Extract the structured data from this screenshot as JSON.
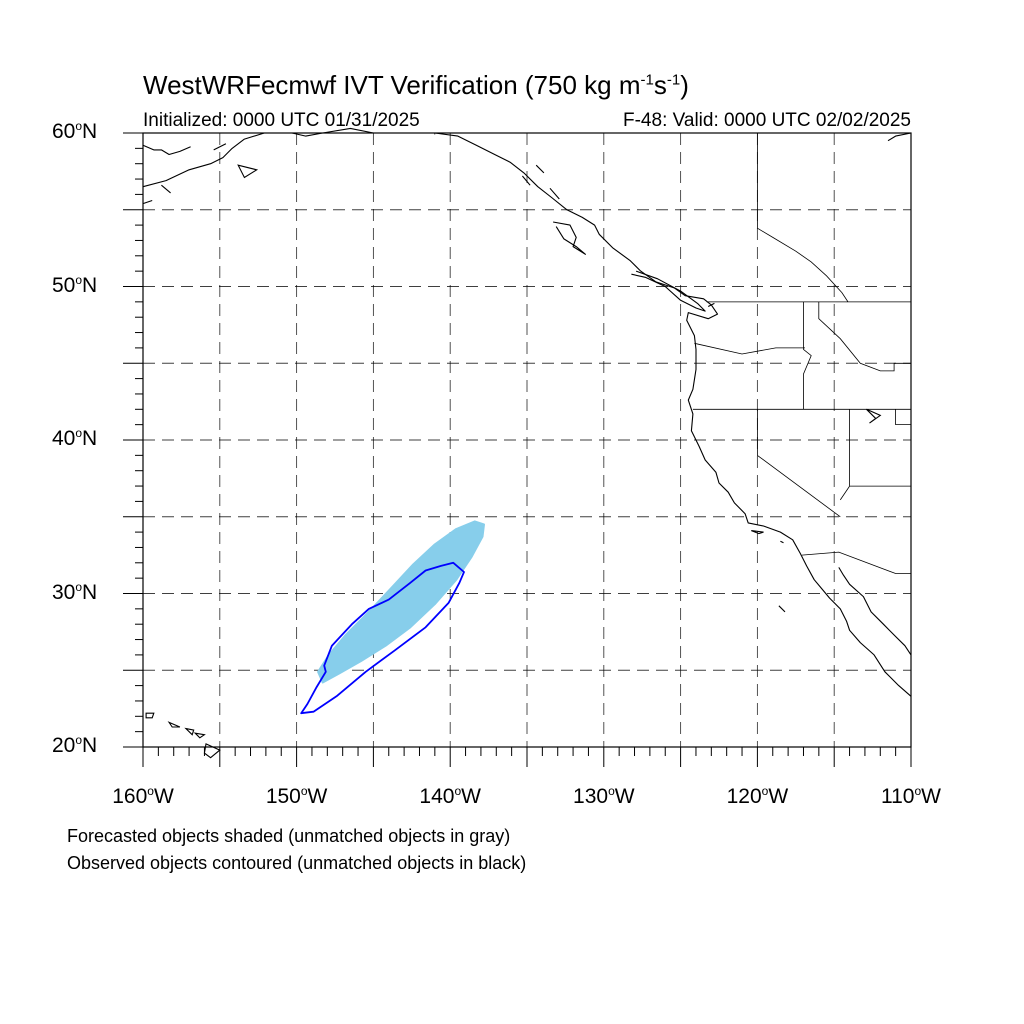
{
  "title": {
    "prefix": "WestWRFecmwf IVT Verification (750 kg m",
    "sup1": "-1",
    "mid": "s",
    "sup2": "-1",
    "suffix": ")"
  },
  "initialized": "Initialized: 0000 UTC 01/31/2025",
  "valid": "F-48: Valid: 0000 UTC 02/02/2025",
  "lat_labels": [
    {
      "value": 60,
      "num": "60",
      "hemi": "N"
    },
    {
      "value": 50,
      "num": "50",
      "hemi": "N"
    },
    {
      "value": 40,
      "num": "40",
      "hemi": "N"
    },
    {
      "value": 30,
      "num": "30",
      "hemi": "N"
    },
    {
      "value": 20,
      "num": "20",
      "hemi": "N"
    }
  ],
  "lon_labels": [
    {
      "value": -160,
      "num": "160",
      "hemi": "W"
    },
    {
      "value": -150,
      "num": "150",
      "hemi": "W"
    },
    {
      "value": -140,
      "num": "140",
      "hemi": "W"
    },
    {
      "value": -130,
      "num": "130",
      "hemi": "W"
    },
    {
      "value": -120,
      "num": "120",
      "hemi": "W"
    },
    {
      "value": -110,
      "num": "110",
      "hemi": "W"
    }
  ],
  "legend": {
    "line1": "Forecasted objects shaded (unmatched objects in gray)",
    "line2": "Observed objects contoured (unmatched objects in black)"
  },
  "map_extent": {
    "lon_min": -160,
    "lon_max": -110,
    "lat_min": 20,
    "lat_max": 60,
    "grid_step_deg": 5
  },
  "colors": {
    "forecast_fill": "#87ceeb",
    "observed_contour": "#0000ff",
    "grid": "#000000"
  },
  "forecast_object": [
    [
      -148.3,
      24.2
    ],
    [
      -147.2,
      24.8
    ],
    [
      -145.8,
      25.6
    ],
    [
      -144.2,
      26.6
    ],
    [
      -142.6,
      27.8
    ],
    [
      -141.0,
      29.3
    ],
    [
      -139.6,
      30.9
    ],
    [
      -138.6,
      32.4
    ],
    [
      -137.9,
      33.7
    ],
    [
      -137.8,
      34.5
    ],
    [
      -138.4,
      34.7
    ],
    [
      -139.6,
      34.2
    ],
    [
      -141.0,
      33.2
    ],
    [
      -142.4,
      31.9
    ],
    [
      -143.8,
      30.4
    ],
    [
      -145.3,
      28.8
    ],
    [
      -146.8,
      27.3
    ],
    [
      -147.9,
      26.0
    ],
    [
      -148.6,
      24.9
    ]
  ],
  "observed_object": [
    [
      -149.7,
      22.2
    ],
    [
      -148.9,
      22.3
    ],
    [
      -147.4,
      23.3
    ],
    [
      -145.5,
      24.9
    ],
    [
      -143.6,
      26.3
    ],
    [
      -141.6,
      27.8
    ],
    [
      -140.1,
      29.4
    ],
    [
      -139.4,
      30.7
    ],
    [
      -139.1,
      31.4
    ],
    [
      -139.8,
      32.0
    ],
    [
      -140.6,
      31.8
    ],
    [
      -141.6,
      31.5
    ],
    [
      -142.6,
      30.7
    ],
    [
      -144.0,
      29.6
    ],
    [
      -145.3,
      29.0
    ],
    [
      -146.4,
      28.0
    ],
    [
      -147.7,
      26.6
    ],
    [
      -148.2,
      25.3
    ],
    [
      -148.1,
      24.9
    ],
    [
      -148.7,
      23.9
    ],
    [
      -149.3,
      22.8
    ]
  ],
  "coastlines": [
    [
      [
        -160,
        56.5
      ],
      [
        -158.5,
        56.9
      ],
      [
        -157.0,
        57.6
      ],
      [
        -155.6,
        58.0
      ],
      [
        -154.8,
        58.4
      ],
      [
        -154.2,
        59.0
      ],
      [
        -153.4,
        59.6
      ],
      [
        -152.1,
        60.0
      ]
    ],
    [
      [
        -160,
        59.2
      ],
      [
        -159.3,
        58.9
      ],
      [
        -158.8,
        58.9
      ],
      [
        -158.3,
        58.6
      ],
      [
        -157.6,
        58.8
      ],
      [
        -156.9,
        59.1
      ]
    ],
    [
      [
        -150.3,
        60.0
      ],
      [
        -149.4,
        59.8
      ],
      [
        -148.3,
        60.0
      ],
      [
        -146.5,
        60.3
      ],
      [
        -145.0,
        60.0
      ],
      [
        -143.0,
        60.0
      ],
      [
        -141.0,
        60.0
      ],
      [
        -139.5,
        59.8
      ],
      [
        -138.3,
        59.2
      ],
      [
        -137.1,
        58.6
      ],
      [
        -136.1,
        58.1
      ],
      [
        -135.2,
        57.4
      ],
      [
        -134.3,
        56.5
      ],
      [
        -133.4,
        55.8
      ],
      [
        -132.4,
        55.0
      ],
      [
        -131.4,
        54.5
      ],
      [
        -130.6,
        54.0
      ],
      [
        -130.3,
        53.4
      ],
      [
        -129.4,
        52.5
      ],
      [
        -128.3,
        51.7
      ],
      [
        -127.6,
        51.0
      ],
      [
        -126.6,
        50.3
      ],
      [
        -125.4,
        49.9
      ],
      [
        -124.7,
        49.4
      ],
      [
        -123.5,
        49.2
      ],
      [
        -123.0,
        48.8
      ],
      [
        -122.6,
        48.2
      ],
      [
        -123.2,
        47.9
      ],
      [
        -124.5,
        48.3
      ],
      [
        -124.6,
        47.8
      ],
      [
        -124.1,
        46.8
      ],
      [
        -124.0,
        45.9
      ],
      [
        -124.0,
        44.6
      ],
      [
        -124.2,
        43.3
      ],
      [
        -124.5,
        42.6
      ],
      [
        -124.2,
        41.7
      ],
      [
        -124.3,
        40.6
      ],
      [
        -123.8,
        39.6
      ],
      [
        -123.4,
        38.7
      ],
      [
        -122.7,
        37.9
      ],
      [
        -122.5,
        37.2
      ],
      [
        -121.9,
        36.6
      ],
      [
        -121.5,
        35.9
      ],
      [
        -120.8,
        35.2
      ],
      [
        -120.6,
        34.6
      ],
      [
        -119.6,
        34.4
      ],
      [
        -118.5,
        34.0
      ],
      [
        -117.7,
        33.5
      ],
      [
        -117.2,
        32.6
      ],
      [
        -116.8,
        31.8
      ],
      [
        -116.3,
        30.9
      ],
      [
        -115.8,
        30.3
      ],
      [
        -115.3,
        29.7
      ],
      [
        -114.6,
        29.0
      ],
      [
        -114.2,
        28.2
      ],
      [
        -114.0,
        27.6
      ],
      [
        -113.3,
        26.8
      ],
      [
        -112.4,
        26.0
      ],
      [
        -111.7,
        24.9
      ],
      [
        -110.8,
        24.0
      ],
      [
        -110.0,
        23.3
      ]
    ],
    [
      [
        -114.7,
        31.7
      ],
      [
        -114.4,
        31.2
      ],
      [
        -114.0,
        30.6
      ],
      [
        -113.1,
        29.8
      ],
      [
        -112.6,
        28.8
      ],
      [
        -111.8,
        28.0
      ],
      [
        -111.0,
        27.2
      ],
      [
        -110.4,
        26.6
      ],
      [
        -110.0,
        26.0
      ]
    ],
    [
      [
        -110,
        60.0
      ],
      [
        -111.0,
        59.8
      ],
      [
        -111.5,
        59.5
      ]
    ],
    [
      [
        -133.3,
        54.2
      ],
      [
        -132.2,
        54.0
      ],
      [
        -131.8,
        53.2
      ],
      [
        -132.0,
        52.6
      ],
      [
        -131.2,
        52.1
      ],
      [
        -131.8,
        52.6
      ],
      [
        -132.6,
        53.1
      ],
      [
        -133.1,
        53.9
      ]
    ],
    [
      [
        -128.2,
        50.8
      ],
      [
        -127.3,
        50.6
      ],
      [
        -126.0,
        50.0
      ],
      [
        -125.0,
        49.1
      ],
      [
        -124.0,
        48.6
      ],
      [
        -123.4,
        48.4
      ],
      [
        -123.9,
        48.9
      ],
      [
        -125.0,
        49.7
      ],
      [
        -126.5,
        50.5
      ],
      [
        -127.9,
        51.0
      ]
    ]
  ],
  "borders": [
    [
      [
        -141.0,
        60.0
      ],
      [
        -141.0,
        59.9
      ]
    ],
    [
      [
        -123.3,
        49.0
      ],
      [
        -110,
        49.0
      ]
    ],
    [
      [
        -124.2,
        42.0
      ],
      [
        -110,
        42.0
      ]
    ],
    [
      [
        -120.0,
        42.0
      ],
      [
        -120.0,
        39.0
      ],
      [
        -114.6,
        35.0
      ]
    ],
    [
      [
        -117.1,
        32.5
      ],
      [
        -114.7,
        32.7
      ],
      [
        -111.0,
        31.3
      ],
      [
        -110,
        31.3
      ]
    ],
    [
      [
        -114.0,
        42.0
      ],
      [
        -114.0,
        37.0
      ],
      [
        -114.6,
        36.1
      ]
    ],
    [
      [
        -111.0,
        42.0
      ],
      [
        -111.0,
        41.0
      ],
      [
        -110,
        41.0
      ]
    ],
    [
      [
        -114.0,
        37.0
      ],
      [
        -110,
        37.0
      ]
    ],
    [
      [
        -124.1,
        46.3
      ],
      [
        -121.0,
        45.6
      ],
      [
        -118.8,
        46.0
      ],
      [
        -116.9,
        46.0
      ]
    ],
    [
      [
        -117.0,
        49.0
      ],
      [
        -117.0,
        45.9
      ],
      [
        -116.5,
        45.5
      ],
      [
        -117.0,
        44.3
      ],
      [
        -117.0,
        42.0
      ]
    ],
    [
      [
        -116.0,
        49.0
      ],
      [
        -116.0,
        47.9
      ],
      [
        -114.6,
        46.6
      ],
      [
        -113.3,
        45.0
      ],
      [
        -112.0,
        44.5
      ],
      [
        -111.1,
        44.5
      ],
      [
        -111.1,
        45.0
      ],
      [
        -110,
        45.0
      ]
    ],
    [
      [
        -120.0,
        60.0
      ],
      [
        -120.0,
        53.8
      ],
      [
        -119.0,
        53.2
      ],
      [
        -117.5,
        52.3
      ],
      [
        -116.5,
        51.6
      ],
      [
        -115.5,
        50.7
      ],
      [
        -114.5,
        49.6
      ],
      [
        -114.1,
        49.0
      ]
    ]
  ],
  "islands": [
    [
      [
        -159.8,
        22.2
      ],
      [
        -159.3,
        22.2
      ],
      [
        -159.4,
        21.9
      ],
      [
        -159.8,
        21.9
      ]
    ],
    [
      [
        -158.3,
        21.6
      ],
      [
        -157.6,
        21.3
      ],
      [
        -158.1,
        21.3
      ]
    ],
    [
      [
        -157.2,
        21.2
      ],
      [
        -156.7,
        21.1
      ],
      [
        -156.8,
        20.8
      ]
    ],
    [
      [
        -156.6,
        20.9
      ],
      [
        -156.0,
        20.8
      ],
      [
        -156.3,
        20.6
      ]
    ],
    [
      [
        -155.9,
        20.2
      ],
      [
        -155.0,
        19.8
      ],
      [
        -155.6,
        19.3
      ],
      [
        -156.0,
        19.6
      ]
    ],
    [
      [
        -120.4,
        34.1
      ],
      [
        -119.6,
        34.0
      ],
      [
        -119.9,
        33.9
      ]
    ],
    [
      [
        -118.5,
        33.4
      ],
      [
        -118.3,
        33.3
      ]
    ],
    [
      [
        -118.6,
        29.2
      ],
      [
        -118.2,
        28.8
      ]
    ],
    [
      [
        -112.9,
        42.0
      ],
      [
        -112.3,
        41.4
      ],
      [
        -112.7,
        41.1
      ],
      [
        -112.0,
        41.6
      ]
    ],
    [
      [
        -160,
        55.4
      ],
      [
        -159.4,
        55.6
      ]
    ],
    [
      [
        -158.8,
        56.6
      ],
      [
        -158.2,
        56.1
      ]
    ],
    [
      [
        -153.8,
        57.9
      ],
      [
        -152.6,
        57.6
      ],
      [
        -153.4,
        57.1
      ]
    ],
    [
      [
        -155.4,
        58.9
      ],
      [
        -154.6,
        59.3
      ]
    ],
    [
      [
        -134.4,
        57.9
      ],
      [
        -133.9,
        57.4
      ]
    ],
    [
      [
        -135.3,
        57.2
      ],
      [
        -134.8,
        56.6
      ]
    ],
    [
      [
        -133.5,
        56.4
      ],
      [
        -132.9,
        55.7
      ]
    ],
    [
      [
        -123.2,
        48.7
      ],
      [
        -122.8,
        48.9
      ]
    ]
  ]
}
